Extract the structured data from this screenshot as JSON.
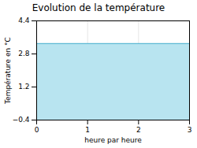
{
  "chart_data": {
    "type": "area",
    "title": "Evolution de la température",
    "x_label": "heure par heure",
    "y_label": "Température en °C",
    "x": [
      0,
      3
    ],
    "values": [
      3.3,
      3.3
    ],
    "colors": [
      "#b8e4f0",
      "#5bb8d4"
    ],
    "xlim": [
      0,
      3
    ],
    "ylim": [
      -0.4,
      4.4
    ],
    "xticks": [
      0,
      1,
      2,
      3
    ],
    "yticks": [
      -0.4,
      1.2,
      2.8,
      4.4
    ],
    "grid": true
  }
}
